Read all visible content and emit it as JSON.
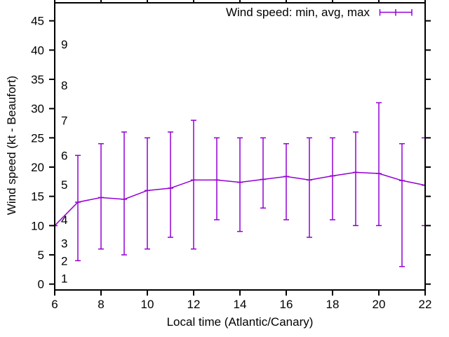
{
  "figure": {
    "background": "#ffffff",
    "axis_color": "#000000",
    "series_color": "#9400d3"
  },
  "chart_data": {
    "type": "line-errorbars",
    "title": "",
    "xlabel": "Local time (Atlantic/Canary)",
    "ylabel": "Wind speed (kt - Beaufort)",
    "legend": {
      "label": "Wind speed: min, avg, max",
      "position": "top-right"
    },
    "grid": false,
    "xlim": [
      6,
      22
    ],
    "ylim": [
      -1,
      48.08
    ],
    "x_ticks": [
      6,
      8,
      10,
      12,
      14,
      16,
      18,
      20,
      22
    ],
    "y_ticks": [
      0,
      5,
      10,
      15,
      20,
      25,
      30,
      35,
      40,
      45
    ],
    "beaufort_labels": [
      {
        "label": "1",
        "kt": 1
      },
      {
        "label": "2",
        "kt": 4
      },
      {
        "label": "3",
        "kt": 7
      },
      {
        "label": "4",
        "kt": 11
      },
      {
        "label": "5",
        "kt": 17
      },
      {
        "label": "6",
        "kt": 22
      },
      {
        "label": "7",
        "kt": 28
      },
      {
        "label": "8",
        "kt": 34
      },
      {
        "label": "9",
        "kt": 41
      }
    ],
    "x": [
      6,
      7,
      8,
      9,
      10,
      11,
      12,
      13,
      14,
      15,
      16,
      17,
      18,
      19,
      20,
      21,
      22
    ],
    "series": [
      {
        "name": "min",
        "values": [
          10,
          4,
          6,
          5,
          6,
          8,
          6,
          11,
          9,
          13,
          11,
          8,
          11,
          10,
          10,
          3,
          10
        ]
      },
      {
        "name": "avg",
        "values": [
          10,
          14,
          14.8,
          14.5,
          16,
          16.4,
          17.8,
          17.8,
          17.4,
          17.9,
          18.4,
          17.8,
          18.5,
          19.1,
          18.9,
          17.7,
          16.9
        ]
      },
      {
        "name": "max",
        "values": [
          10,
          22,
          24,
          26,
          25,
          26,
          28,
          25,
          25,
          25,
          24,
          25,
          25,
          26,
          31,
          24,
          25
        ]
      }
    ]
  }
}
